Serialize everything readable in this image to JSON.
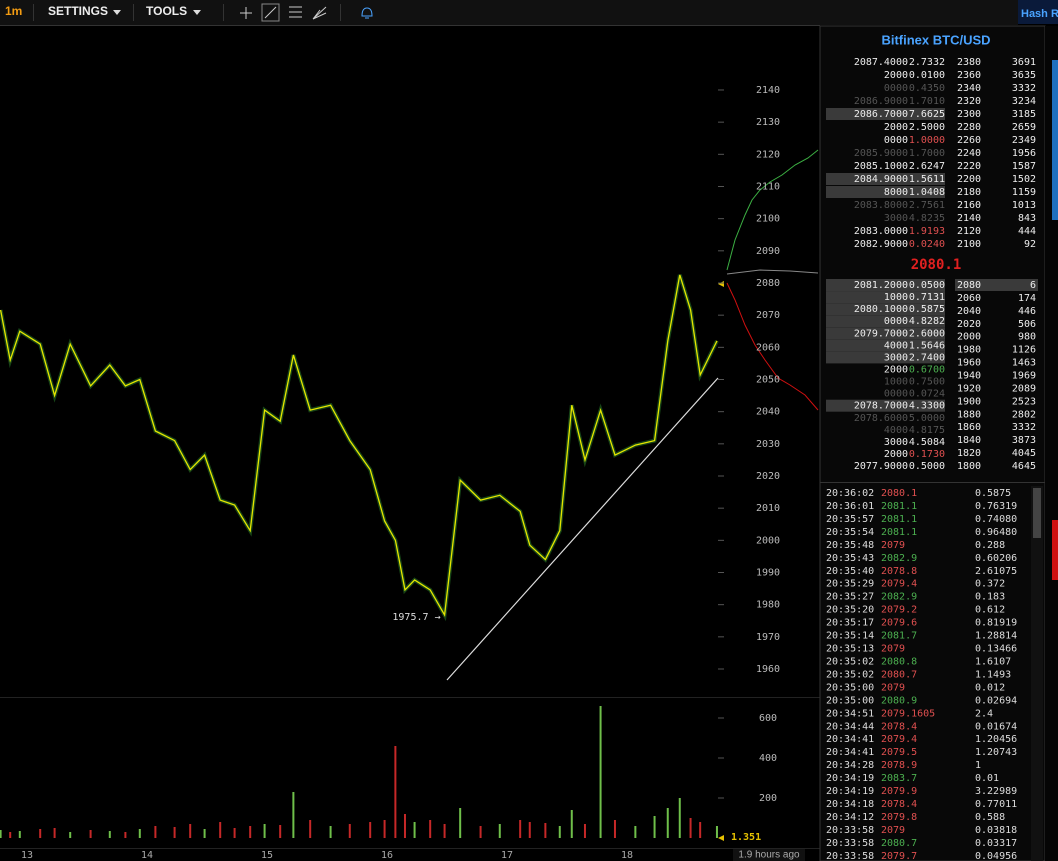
{
  "toolbar": {
    "interval": "1m",
    "menus": [
      "SETTINGS",
      "TOOLS"
    ],
    "corner": "Hash R"
  },
  "chart_data": [
    {
      "type": "line",
      "color": "#e6e600",
      "x": [
        12.78,
        12.86,
        12.94,
        13.11,
        13.23,
        13.36,
        13.53,
        13.69,
        13.82,
        13.94,
        14.07,
        14.23,
        14.36,
        14.48,
        14.61,
        14.73,
        14.86,
        14.98,
        15.11,
        15.22,
        15.36,
        15.53,
        15.69,
        15.86,
        15.98,
        16.07,
        16.15,
        16.23,
        16.36,
        16.48,
        16.61,
        16.78,
        16.94,
        17.11,
        17.19,
        17.32,
        17.44,
        17.54,
        17.65,
        17.78,
        17.9,
        18.07,
        18.23,
        18.34,
        18.44,
        18.53,
        18.61,
        18.75
      ],
      "values": [
        2071.6,
        2056,
        2065,
        2061,
        2045,
        2061,
        2048,
        2054.5,
        2048,
        2050,
        2034,
        2031,
        2022,
        2026.5,
        2012.5,
        2011,
        2003,
        2040.5,
        2037,
        2057.6,
        2040.5,
        2042,
        2031,
        2022,
        2006,
        2000,
        1984.6,
        1987.7,
        1984.6,
        1976.8,
        2018.7,
        2012.5,
        2014,
        2009,
        1998.5,
        1994,
        2003,
        2042,
        2025,
        2040.5,
        2026.5,
        2029.6,
        2031,
        2062,
        2082.5,
        2071.6,
        2051.4,
        2062
      ],
      "xlim": [
        12.775,
        18.942
      ],
      "ylim": [
        1951.3,
        2160.2
      ],
      "xticks": [
        13,
        14,
        15,
        16,
        17,
        18
      ],
      "yticks": [
        1960,
        1970,
        1980,
        1990,
        2000,
        2010,
        2020,
        2030,
        2040,
        2050,
        2060,
        2070,
        2080,
        2090,
        2100,
        2110,
        2120,
        2130,
        2140
      ],
      "annotation": "1975.7 →",
      "x_end_label": "1.9 hours ago"
    },
    {
      "type": "bar",
      "up_color": "#6fbf4a",
      "down_color": "#c62828",
      "x": [
        12.78,
        12.86,
        12.94,
        13.11,
        13.23,
        13.36,
        13.53,
        13.69,
        13.82,
        13.94,
        14.07,
        14.23,
        14.36,
        14.48,
        14.61,
        14.73,
        14.86,
        14.98,
        15.11,
        15.22,
        15.36,
        15.53,
        15.69,
        15.86,
        15.98,
        16.07,
        16.15,
        16.23,
        16.36,
        16.48,
        16.61,
        16.78,
        16.94,
        17.11,
        17.19,
        17.32,
        17.44,
        17.54,
        17.65,
        17.78,
        17.9,
        18.07,
        18.23,
        18.34,
        18.44,
        18.53,
        18.61,
        18.75
      ],
      "values": [
        40,
        30,
        35,
        45,
        50,
        30,
        40,
        35,
        30,
        45,
        60,
        55,
        70,
        45,
        80,
        50,
        60,
        70,
        65,
        230,
        90,
        60,
        70,
        80,
        90,
        460,
        120,
        80,
        90,
        70,
        150,
        60,
        70,
        90,
        80,
        75,
        60,
        140,
        70,
        660,
        90,
        60,
        110,
        150,
        200,
        100,
        80,
        60
      ],
      "xlim": [
        12.775,
        18.942
      ],
      "ylim": [
        -50,
        700
      ],
      "yticks": [
        200,
        400,
        600
      ],
      "last_label": "1.351"
    }
  ],
  "order_book": {
    "title": "Bitfinex BTC/USD",
    "asks": [
      {
        "price": "2087.4000",
        "amount": "2.7332"
      },
      {
        "price": "2000",
        "amount": "0.0100"
      },
      {
        "price": "0000",
        "amount": "0.4350",
        "shade": "dim"
      },
      {
        "price": "2086.9000",
        "amount": "1.7010",
        "shade": "dim"
      },
      {
        "price": "2086.7000",
        "amount": "7.6625",
        "shade": "bar"
      },
      {
        "price": "2000",
        "amount": "2.5000"
      },
      {
        "price": "0000",
        "amount": "1.0000",
        "amount_color": "#e05050"
      },
      {
        "price": "2085.9000",
        "amount": "1.7000",
        "shade": "dim"
      },
      {
        "price": "2085.1000",
        "amount": "2.6247"
      },
      {
        "price": "2084.9000",
        "amount": "1.5611",
        "shade": "bar"
      },
      {
        "price": "8000",
        "amount": "1.0408",
        "shade": "bar"
      },
      {
        "price": "2083.8000",
        "amount": "2.7561",
        "shade": "dim"
      },
      {
        "price": "3000",
        "amount": "4.8235",
        "shade": "dim"
      },
      {
        "price": "2083.0000",
        "amount": "1.9193",
        "amount_color": "#e05050"
      },
      {
        "price": "2082.9000",
        "amount": "0.0240",
        "amount_color": "#e05050"
      }
    ],
    "ask_depth": [
      [
        2380,
        3691
      ],
      [
        2360,
        3635
      ],
      [
        2340,
        3332
      ],
      [
        2320,
        3234
      ],
      [
        2300,
        3185
      ],
      [
        2280,
        2659
      ],
      [
        2260,
        2349
      ],
      [
        2240,
        1956
      ],
      [
        2220,
        1587
      ],
      [
        2200,
        1502
      ],
      [
        2180,
        1159
      ],
      [
        2160,
        1013
      ],
      [
        2140,
        843
      ],
      [
        2120,
        444
      ],
      [
        2100,
        92
      ]
    ],
    "last_price": "2080.1",
    "bids": [
      {
        "price": "2081.2000",
        "amount": "0.0500",
        "shade": "bar"
      },
      {
        "price": "1000",
        "amount": "0.7131",
        "shade": "bar"
      },
      {
        "price": "2080.1000",
        "amount": "0.5875",
        "shade": "bar"
      },
      {
        "price": "0000",
        "amount": "4.8282",
        "shade": "bar"
      },
      {
        "price": "2079.7000",
        "amount": "2.6000",
        "shade": "bar"
      },
      {
        "price": "4000",
        "amount": "1.5646",
        "shade": "bar"
      },
      {
        "price": "3000",
        "amount": "2.7400",
        "shade": "bar"
      },
      {
        "price": "2000",
        "amount": "0.6700",
        "amount_color": "#4caf50"
      },
      {
        "price": "1000",
        "amount": "0.7500",
        "shade": "dim"
      },
      {
        "price": "0000",
        "amount": "0.0724",
        "shade": "dim"
      },
      {
        "price": "2078.7000",
        "amount": "4.3300",
        "shade": "bar"
      },
      {
        "price": "2078.6000",
        "amount": "5.0000",
        "shade": "dim"
      },
      {
        "price": "4000",
        "amount": "4.8175",
        "shade": "dim"
      },
      {
        "price": "3000",
        "amount": "4.5084"
      },
      {
        "price": "2000",
        "amount": "0.1730",
        "amount_color": "#e05050"
      },
      {
        "price": "2077.9000",
        "amount": "0.5000"
      }
    ],
    "bid_depth": [
      [
        2080,
        6
      ],
      [
        2060,
        174
      ],
      [
        2040,
        446
      ],
      [
        2020,
        506
      ],
      [
        2000,
        980
      ],
      [
        1980,
        1126
      ],
      [
        1960,
        1463
      ],
      [
        1940,
        1969
      ],
      [
        1920,
        2089
      ],
      [
        1900,
        2523
      ],
      [
        1880,
        2802
      ],
      [
        1860,
        3332
      ],
      [
        1840,
        3873
      ],
      [
        1820,
        4045
      ],
      [
        1800,
        4645
      ]
    ]
  },
  "trades": [
    {
      "time": "20:36:02",
      "price": "2080.1",
      "amount": "0.5875",
      "color": "#e05050"
    },
    {
      "time": "20:36:01",
      "price": "2081.1",
      "amount": "0.76319",
      "color": "#4caf50"
    },
    {
      "time": "20:35:57",
      "price": "2081.1",
      "amount": "0.74080",
      "color": "#4caf50"
    },
    {
      "time": "20:35:54",
      "price": "2081.1",
      "amount": "0.96480",
      "color": "#4caf50"
    },
    {
      "time": "20:35:48",
      "price": "2079",
      "amount": "0.288",
      "color": "#e05050"
    },
    {
      "time": "20:35:43",
      "price": "2082.9",
      "amount": "0.60206",
      "color": "#4caf50"
    },
    {
      "time": "20:35:40",
      "price": "2078.8",
      "amount": "2.61075",
      "color": "#e05050"
    },
    {
      "time": "20:35:29",
      "price": "2079.4",
      "amount": "0.372",
      "color": "#e05050"
    },
    {
      "time": "20:35:27",
      "price": "2082.9",
      "amount": "0.183",
      "color": "#4caf50"
    },
    {
      "time": "20:35:20",
      "price": "2079.2",
      "amount": "0.612",
      "color": "#e05050"
    },
    {
      "time": "20:35:17",
      "price": "2079.6",
      "amount": "0.81919",
      "color": "#e05050"
    },
    {
      "time": "20:35:14",
      "price": "2081.7",
      "amount": "1.28814",
      "color": "#4caf50"
    },
    {
      "time": "20:35:13",
      "price": "2079",
      "amount": "0.13466",
      "color": "#e05050"
    },
    {
      "time": "20:35:02",
      "price": "2080.8",
      "amount": "1.6107",
      "color": "#4caf50"
    },
    {
      "time": "20:35:02",
      "price": "2080.7",
      "amount": "1.1493",
      "color": "#e05050"
    },
    {
      "time": "20:35:00",
      "price": "2079",
      "amount": "0.012",
      "color": "#e05050"
    },
    {
      "time": "20:35:00",
      "price": "2080.9",
      "amount": "0.02694",
      "color": "#4caf50"
    },
    {
      "time": "20:34:51",
      "price": "2079.1605",
      "amount": "2.4",
      "color": "#e05050"
    },
    {
      "time": "20:34:44",
      "price": "2078.4",
      "amount": "0.01674",
      "color": "#e05050"
    },
    {
      "time": "20:34:41",
      "price": "2079.4",
      "amount": "1.20456",
      "color": "#e05050"
    },
    {
      "time": "20:34:41",
      "price": "2079.5",
      "amount": "1.20743",
      "color": "#e05050"
    },
    {
      "time": "20:34:28",
      "price": "2078.9",
      "amount": "1",
      "color": "#e05050"
    },
    {
      "time": "20:34:19",
      "price": "2083.7",
      "amount": "0.01",
      "color": "#4caf50"
    },
    {
      "time": "20:34:19",
      "price": "2079.9",
      "amount": "3.22989",
      "color": "#e05050"
    },
    {
      "time": "20:34:18",
      "price": "2078.4",
      "amount": "0.77011",
      "color": "#e05050"
    },
    {
      "time": "20:34:12",
      "price": "2079.8",
      "amount": "0.588",
      "color": "#e05050"
    },
    {
      "time": "20:33:58",
      "price": "2079",
      "amount": "0.03818",
      "color": "#e05050"
    },
    {
      "time": "20:33:58",
      "price": "2080.7",
      "amount": "0.03317",
      "color": "#4caf50"
    },
    {
      "time": "20:33:58",
      "price": "2079.7",
      "amount": "0.04956",
      "color": "#e05050"
    }
  ]
}
